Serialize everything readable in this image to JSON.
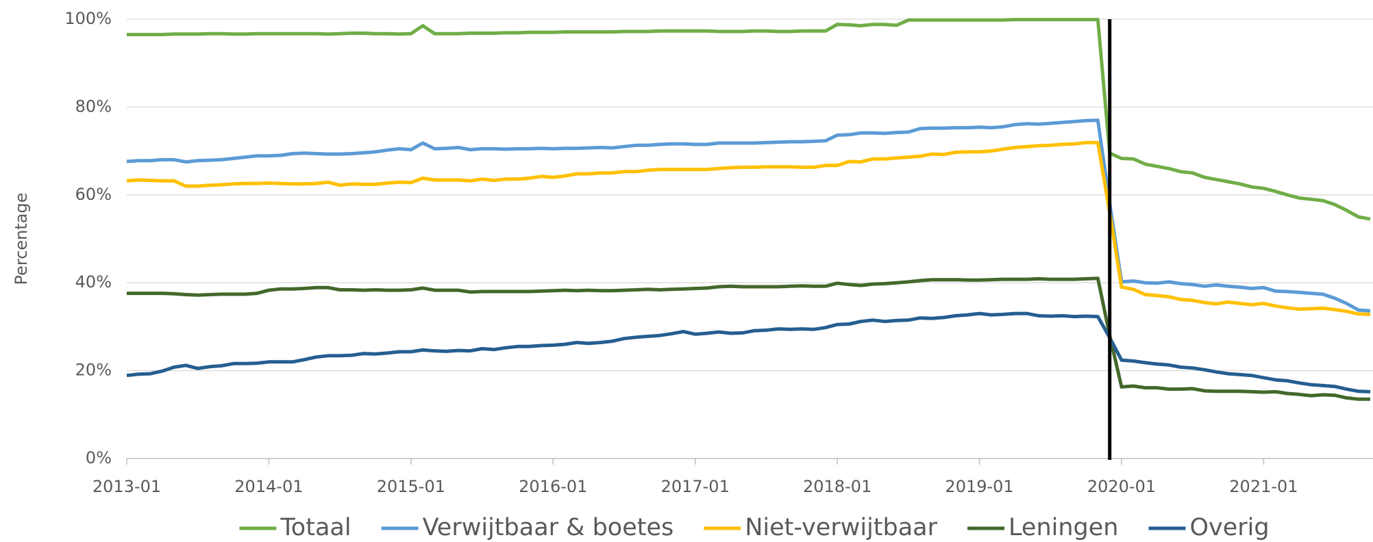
{
  "chart_data": {
    "type": "line",
    "y_label": "Percentage",
    "x": [
      "2013-01",
      "2013-02",
      "2013-03",
      "2013-04",
      "2013-05",
      "2013-06",
      "2013-07",
      "2013-08",
      "2013-09",
      "2013-10",
      "2013-11",
      "2013-12",
      "2014-01",
      "2014-02",
      "2014-03",
      "2014-04",
      "2014-05",
      "2014-06",
      "2014-07",
      "2014-08",
      "2014-09",
      "2014-10",
      "2014-11",
      "2014-12",
      "2015-01",
      "2015-02",
      "2015-03",
      "2015-04",
      "2015-05",
      "2015-06",
      "2015-07",
      "2015-08",
      "2015-09",
      "2015-10",
      "2015-11",
      "2015-12",
      "2016-01",
      "2016-02",
      "2016-03",
      "2016-04",
      "2016-05",
      "2016-06",
      "2016-07",
      "2016-08",
      "2016-09",
      "2016-10",
      "2016-11",
      "2016-12",
      "2017-01",
      "2017-02",
      "2017-03",
      "2017-04",
      "2017-05",
      "2017-06",
      "2017-07",
      "2017-08",
      "2017-09",
      "2017-10",
      "2017-11",
      "2017-12",
      "2018-01",
      "2018-02",
      "2018-03",
      "2018-04",
      "2018-05",
      "2018-06",
      "2018-07",
      "2018-08",
      "2018-09",
      "2018-10",
      "2018-11",
      "2018-12",
      "2019-01",
      "2019-02",
      "2019-03",
      "2019-04",
      "2019-05",
      "2019-06",
      "2019-07",
      "2019-08",
      "2019-09",
      "2019-10",
      "2019-11",
      "2019-12",
      "2020-01",
      "2020-02",
      "2020-03",
      "2020-04",
      "2020-05",
      "2020-06",
      "2020-07",
      "2020-08",
      "2020-09",
      "2020-10",
      "2020-11",
      "2020-12",
      "2021-01",
      "2021-02",
      "2021-03",
      "2021-04",
      "2021-05",
      "2021-06",
      "2021-07",
      "2021-08",
      "2021-09",
      "2021-10"
    ],
    "xticks": [
      "2013-01",
      "2014-01",
      "2015-01",
      "2016-01",
      "2017-01",
      "2018-01",
      "2019-01",
      "2020-01",
      "2021-01"
    ],
    "vline_x": "2019-12",
    "ylim": [
      0,
      100
    ],
    "yticks": [
      {
        "value": 0,
        "label": "0%"
      },
      {
        "value": 20,
        "label": "20%"
      },
      {
        "value": 40,
        "label": "40%"
      },
      {
        "value": 60,
        "label": "60%"
      },
      {
        "value": 80,
        "label": "80%"
      },
      {
        "value": 100,
        "label": "100%"
      }
    ],
    "grid": true,
    "legend": "bottom",
    "series": [
      {
        "name": "Totaal",
        "color": "#70ad47",
        "values": [
          96.5,
          96.5,
          96.5,
          96.5,
          96.6,
          96.6,
          96.6,
          96.7,
          96.7,
          96.6,
          96.6,
          96.7,
          96.7,
          96.7,
          96.7,
          96.7,
          96.7,
          96.6,
          96.7,
          96.8,
          96.8,
          96.7,
          96.7,
          96.6,
          96.7,
          98.5,
          96.7,
          96.7,
          96.7,
          96.8,
          96.8,
          96.8,
          96.9,
          96.9,
          97.0,
          97.0,
          97.0,
          97.1,
          97.1,
          97.1,
          97.1,
          97.1,
          97.2,
          97.2,
          97.2,
          97.3,
          97.3,
          97.3,
          97.3,
          97.3,
          97.2,
          97.2,
          97.2,
          97.3,
          97.3,
          97.2,
          97.2,
          97.3,
          97.3,
          97.3,
          98.8,
          98.7,
          98.5,
          98.8,
          98.8,
          98.6,
          99.8,
          99.8,
          99.8,
          99.8,
          99.8,
          99.8,
          99.8,
          99.8,
          99.8,
          99.9,
          99.9,
          99.9,
          99.9,
          99.9,
          99.9,
          99.9,
          99.9,
          69.5,
          68.3,
          68.2,
          67.0,
          66.5,
          66.0,
          65.3,
          65.0,
          64.0,
          63.5,
          63.0,
          62.5,
          61.8,
          61.5,
          60.8,
          60.0,
          59.3,
          59.0,
          58.7,
          57.8,
          56.5,
          55.0,
          54.5
        ]
      },
      {
        "name": "Verwijtbaar & boetes",
        "color": "#5b9bd5",
        "values": [
          67.6,
          67.8,
          67.8,
          68.0,
          68.0,
          67.5,
          67.8,
          67.9,
          68.0,
          68.3,
          68.6,
          68.9,
          68.9,
          69.0,
          69.4,
          69.5,
          69.4,
          69.3,
          69.3,
          69.4,
          69.6,
          69.8,
          70.2,
          70.5,
          70.3,
          71.8,
          70.5,
          70.6,
          70.8,
          70.3,
          70.5,
          70.5,
          70.4,
          70.5,
          70.5,
          70.6,
          70.5,
          70.6,
          70.6,
          70.7,
          70.8,
          70.7,
          71.0,
          71.3,
          71.3,
          71.5,
          71.6,
          71.6,
          71.5,
          71.5,
          71.8,
          71.8,
          71.8,
          71.8,
          71.9,
          72.0,
          72.1,
          72.1,
          72.2,
          72.3,
          73.6,
          73.7,
          74.1,
          74.1,
          74.0,
          74.2,
          74.3,
          75.1,
          75.2,
          75.2,
          75.3,
          75.3,
          75.4,
          75.3,
          75.5,
          76.0,
          76.2,
          76.1,
          76.3,
          76.5,
          76.7,
          76.9,
          77.0,
          58.0,
          40.2,
          40.4,
          40.0,
          39.9,
          40.2,
          39.8,
          39.6,
          39.2,
          39.5,
          39.2,
          39.0,
          38.7,
          38.9,
          38.1,
          38.0,
          37.8,
          37.6,
          37.4,
          36.5,
          35.3,
          33.8,
          33.6
        ]
      },
      {
        "name": "Niet-verwijtbaar",
        "color": "#ffc000",
        "values": [
          63.2,
          63.4,
          63.3,
          63.2,
          63.2,
          62.0,
          62.0,
          62.2,
          62.3,
          62.5,
          62.6,
          62.6,
          62.7,
          62.6,
          62.5,
          62.5,
          62.6,
          62.9,
          62.2,
          62.5,
          62.4,
          62.4,
          62.7,
          62.9,
          62.8,
          63.8,
          63.4,
          63.4,
          63.4,
          63.2,
          63.6,
          63.3,
          63.6,
          63.6,
          63.8,
          64.2,
          64.0,
          64.3,
          64.8,
          64.8,
          65.0,
          65.0,
          65.3,
          65.3,
          65.6,
          65.8,
          65.8,
          65.8,
          65.8,
          65.8,
          66.0,
          66.2,
          66.3,
          66.3,
          66.4,
          66.4,
          66.4,
          66.3,
          66.3,
          66.7,
          66.7,
          67.6,
          67.5,
          68.2,
          68.2,
          68.4,
          68.6,
          68.8,
          69.3,
          69.2,
          69.7,
          69.8,
          69.8,
          70.0,
          70.4,
          70.8,
          71.0,
          71.2,
          71.3,
          71.5,
          71.6,
          71.9,
          71.9,
          56.0,
          39.0,
          38.5,
          37.3,
          37.1,
          36.8,
          36.2,
          36.0,
          35.5,
          35.2,
          35.6,
          35.3,
          35.0,
          35.3,
          34.7,
          34.3,
          34.0,
          34.1,
          34.2,
          33.9,
          33.5,
          32.9,
          32.8
        ]
      },
      {
        "name": "Leningen",
        "color": "#43682b",
        "values": [
          37.6,
          37.6,
          37.6,
          37.6,
          37.5,
          37.3,
          37.2,
          37.3,
          37.4,
          37.4,
          37.4,
          37.6,
          38.3,
          38.6,
          38.6,
          38.7,
          38.9,
          38.9,
          38.4,
          38.4,
          38.3,
          38.4,
          38.3,
          38.3,
          38.4,
          38.8,
          38.3,
          38.3,
          38.3,
          37.9,
          38.0,
          38.0,
          38.0,
          38.0,
          38.0,
          38.1,
          38.2,
          38.3,
          38.2,
          38.3,
          38.2,
          38.2,
          38.3,
          38.4,
          38.5,
          38.4,
          38.5,
          38.6,
          38.7,
          38.8,
          39.1,
          39.2,
          39.1,
          39.1,
          39.1,
          39.1,
          39.2,
          39.3,
          39.2,
          39.2,
          39.9,
          39.6,
          39.4,
          39.7,
          39.8,
          40.0,
          40.2,
          40.5,
          40.7,
          40.7,
          40.7,
          40.6,
          40.6,
          40.7,
          40.8,
          40.8,
          40.8,
          40.9,
          40.8,
          40.8,
          40.8,
          40.9,
          41.0,
          28.0,
          16.3,
          16.5,
          16.1,
          16.1,
          15.8,
          15.8,
          15.9,
          15.4,
          15.3,
          15.3,
          15.3,
          15.2,
          15.1,
          15.2,
          14.8,
          14.6,
          14.3,
          14.5,
          14.4,
          13.8,
          13.5,
          13.5
        ]
      },
      {
        "name": "Overig",
        "color": "#255e91",
        "values": [
          18.9,
          19.2,
          19.3,
          19.9,
          20.8,
          21.2,
          20.5,
          20.9,
          21.1,
          21.6,
          21.6,
          21.7,
          22.0,
          22.0,
          22.0,
          22.5,
          23.1,
          23.4,
          23.4,
          23.5,
          23.9,
          23.8,
          24.0,
          24.3,
          24.3,
          24.7,
          24.5,
          24.4,
          24.6,
          24.5,
          25.0,
          24.8,
          25.2,
          25.5,
          25.5,
          25.7,
          25.8,
          26.0,
          26.4,
          26.2,
          26.4,
          26.7,
          27.3,
          27.6,
          27.8,
          28.0,
          28.4,
          28.9,
          28.3,
          28.5,
          28.8,
          28.5,
          28.6,
          29.1,
          29.2,
          29.5,
          29.4,
          29.5,
          29.4,
          29.8,
          30.5,
          30.6,
          31.2,
          31.5,
          31.2,
          31.4,
          31.5,
          32.0,
          31.9,
          32.1,
          32.5,
          32.7,
          33.0,
          32.7,
          32.8,
          33.0,
          33.0,
          32.5,
          32.4,
          32.5,
          32.3,
          32.4,
          32.3,
          27.5,
          22.4,
          22.2,
          21.8,
          21.5,
          21.3,
          20.8,
          20.6,
          20.2,
          19.7,
          19.3,
          19.1,
          18.9,
          18.4,
          17.9,
          17.7,
          17.2,
          16.8,
          16.6,
          16.4,
          15.8,
          15.3,
          15.2
        ]
      }
    ]
  }
}
